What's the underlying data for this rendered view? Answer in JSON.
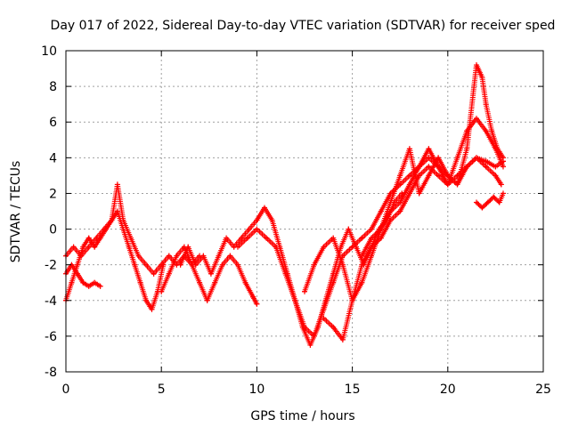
{
  "chart_data": {
    "type": "scatter",
    "title": "Day 017 of 2022, Sidereal Day-to-day VTEC variation (SDTVAR) for receiver sped",
    "xlabel": "GPS time / hours",
    "ylabel": "SDTVAR / TECUs",
    "xlim": [
      0,
      25
    ],
    "ylim": [
      -8,
      10
    ],
    "x_ticks": [
      0,
      5,
      10,
      15,
      20,
      25
    ],
    "y_ticks": [
      -8,
      -6,
      -4,
      -2,
      0,
      2,
      4,
      6,
      8,
      10
    ],
    "x_tick_labels": [
      "0",
      "5",
      "10",
      "15",
      "20",
      "25"
    ],
    "y_tick_labels": [
      "-8",
      "-6",
      "-4",
      "-2",
      "0",
      "2",
      "4",
      "6",
      "8",
      "10"
    ],
    "grid": true,
    "marker": "+",
    "color": "#ff0000",
    "series": [
      {
        "name": "trace-1",
        "x": [
          0.0,
          0.3,
          0.6,
          0.9,
          1.2,
          1.5,
          1.8,
          2.1,
          2.4,
          2.7,
          3.0,
          3.3,
          3.6,
          3.9,
          4.2,
          4.5,
          4.8,
          5.1
        ],
        "y": [
          -4.0,
          -3.0,
          -2.0,
          -1.0,
          -0.5,
          -1.0,
          -0.5,
          0.0,
          0.5,
          1.0,
          0.0,
          -1.0,
          -2.0,
          -3.0,
          -4.0,
          -4.5,
          -3.5,
          -2.0
        ]
      },
      {
        "name": "trace-2",
        "x": [
          0.0,
          0.4,
          0.8,
          1.2,
          1.6,
          2.0,
          2.4,
          2.7,
          3.0,
          3.4,
          3.8,
          4.2,
          4.6,
          5.0,
          5.4,
          5.8,
          6.2,
          6.6,
          7.0
        ],
        "y": [
          -1.5,
          -1.0,
          -1.5,
          -1.0,
          -0.5,
          0.0,
          0.5,
          2.5,
          0.5,
          -0.5,
          -1.5,
          -2.0,
          -2.5,
          -2.0,
          -1.5,
          -2.0,
          -1.5,
          -2.0,
          -1.5
        ]
      },
      {
        "name": "trace-3",
        "x": [
          0.0,
          0.3,
          0.6,
          0.9,
          1.2,
          1.5,
          1.8
        ],
        "y": [
          -2.5,
          -2.0,
          -2.5,
          -3.0,
          -3.2,
          -3.0,
          -3.2
        ]
      },
      {
        "name": "trace-4",
        "x": [
          5.0,
          5.4,
          5.8,
          6.2,
          6.6,
          7.0,
          7.4,
          7.8,
          8.2,
          8.6,
          9.0,
          9.4,
          9.8,
          10.0
        ],
        "y": [
          -3.5,
          -2.5,
          -1.5,
          -1.0,
          -2.0,
          -3.0,
          -4.0,
          -3.0,
          -2.0,
          -1.5,
          -2.0,
          -3.0,
          -3.8,
          -4.2
        ]
      },
      {
        "name": "trace-5",
        "x": [
          6.0,
          6.4,
          6.8,
          7.2,
          7.6,
          8.0,
          8.4,
          8.8,
          9.2,
          9.6,
          10.0,
          10.4,
          10.8,
          11.2,
          11.6,
          12.0,
          12.4,
          12.8,
          13.2,
          13.6,
          14.0,
          14.4,
          14.8,
          15.2,
          15.6,
          16.0,
          16.4,
          16.8,
          17.2,
          17.6
        ],
        "y": [
          -2.0,
          -1.0,
          -2.0,
          -1.5,
          -2.5,
          -1.5,
          -0.5,
          -1.0,
          -0.5,
          0.0,
          0.5,
          1.2,
          0.5,
          -1.0,
          -2.5,
          -4.0,
          -5.5,
          -6.5,
          -5.5,
          -4.0,
          -2.5,
          -1.0,
          0.0,
          -1.0,
          -2.0,
          -1.0,
          0.0,
          0.5,
          1.5,
          2.0
        ]
      },
      {
        "name": "trace-6",
        "x": [
          9.0,
          9.5,
          10.0,
          10.5,
          11.0,
          11.5,
          12.0,
          12.5,
          13.0,
          13.5,
          14.0,
          14.5,
          15.0,
          15.5,
          16.0,
          16.5,
          17.0,
          17.5,
          18.0,
          18.5,
          19.0,
          19.5,
          20.0,
          20.5,
          21.0,
          21.5,
          22.0,
          22.5,
          22.8
        ],
        "y": [
          -1.0,
          -0.5,
          0.0,
          -0.5,
          -1.0,
          -2.5,
          -4.0,
          -5.5,
          -6.0,
          -4.5,
          -3.0,
          -1.5,
          -1.0,
          -0.5,
          0.0,
          1.0,
          2.0,
          2.5,
          3.0,
          3.5,
          4.0,
          3.5,
          3.0,
          2.5,
          3.5,
          4.0,
          3.5,
          3.0,
          2.5
        ]
      },
      {
        "name": "trace-7",
        "x": [
          12.5,
          13.0,
          13.5,
          14.0,
          14.5,
          15.0,
          15.5,
          16.0,
          16.5,
          17.0,
          17.5,
          18.0,
          18.5,
          19.0,
          19.5,
          20.0,
          20.5,
          21.0,
          21.5,
          22.0,
          22.5,
          22.9
        ],
        "y": [
          -3.5,
          -2.0,
          -1.0,
          -0.5,
          -2.0,
          -4.0,
          -3.0,
          -1.5,
          0.0,
          1.0,
          1.5,
          2.5,
          3.5,
          4.5,
          3.5,
          2.5,
          4.0,
          5.5,
          6.2,
          5.5,
          4.5,
          3.5
        ]
      },
      {
        "name": "trace-8",
        "x": [
          13.5,
          14.0,
          14.5,
          15.0,
          15.5,
          16.0,
          16.5,
          17.0,
          17.5,
          18.0,
          18.5,
          19.0,
          19.5,
          20.0,
          20.5,
          21.0,
          21.5,
          22.0,
          22.5,
          22.9
        ],
        "y": [
          -5.0,
          -5.5,
          -6.2,
          -4.0,
          -2.0,
          -1.0,
          -0.5,
          0.5,
          1.0,
          2.0,
          3.0,
          3.5,
          3.0,
          2.5,
          3.0,
          3.5,
          4.0,
          3.8,
          3.5,
          3.8
        ]
      },
      {
        "name": "trace-9",
        "x": [
          15.5,
          16.0,
          16.5,
          17.0,
          17.5,
          18.0,
          18.5,
          19.0,
          19.5,
          20.0,
          20.5,
          21.0,
          21.5,
          21.8,
          22.0,
          22.3,
          22.6,
          22.9
        ],
        "y": [
          -1.5,
          -0.5,
          0.0,
          1.5,
          3.0,
          4.5,
          2.0,
          3.0,
          4.0,
          3.0,
          2.5,
          4.5,
          9.2,
          8.5,
          7.0,
          5.5,
          4.5,
          4.0
        ]
      },
      {
        "name": "trace-10",
        "x": [
          21.5,
          21.8,
          22.1,
          22.4,
          22.7,
          22.9
        ],
        "y": [
          1.5,
          1.2,
          1.5,
          1.8,
          1.5,
          2.0
        ]
      }
    ]
  }
}
